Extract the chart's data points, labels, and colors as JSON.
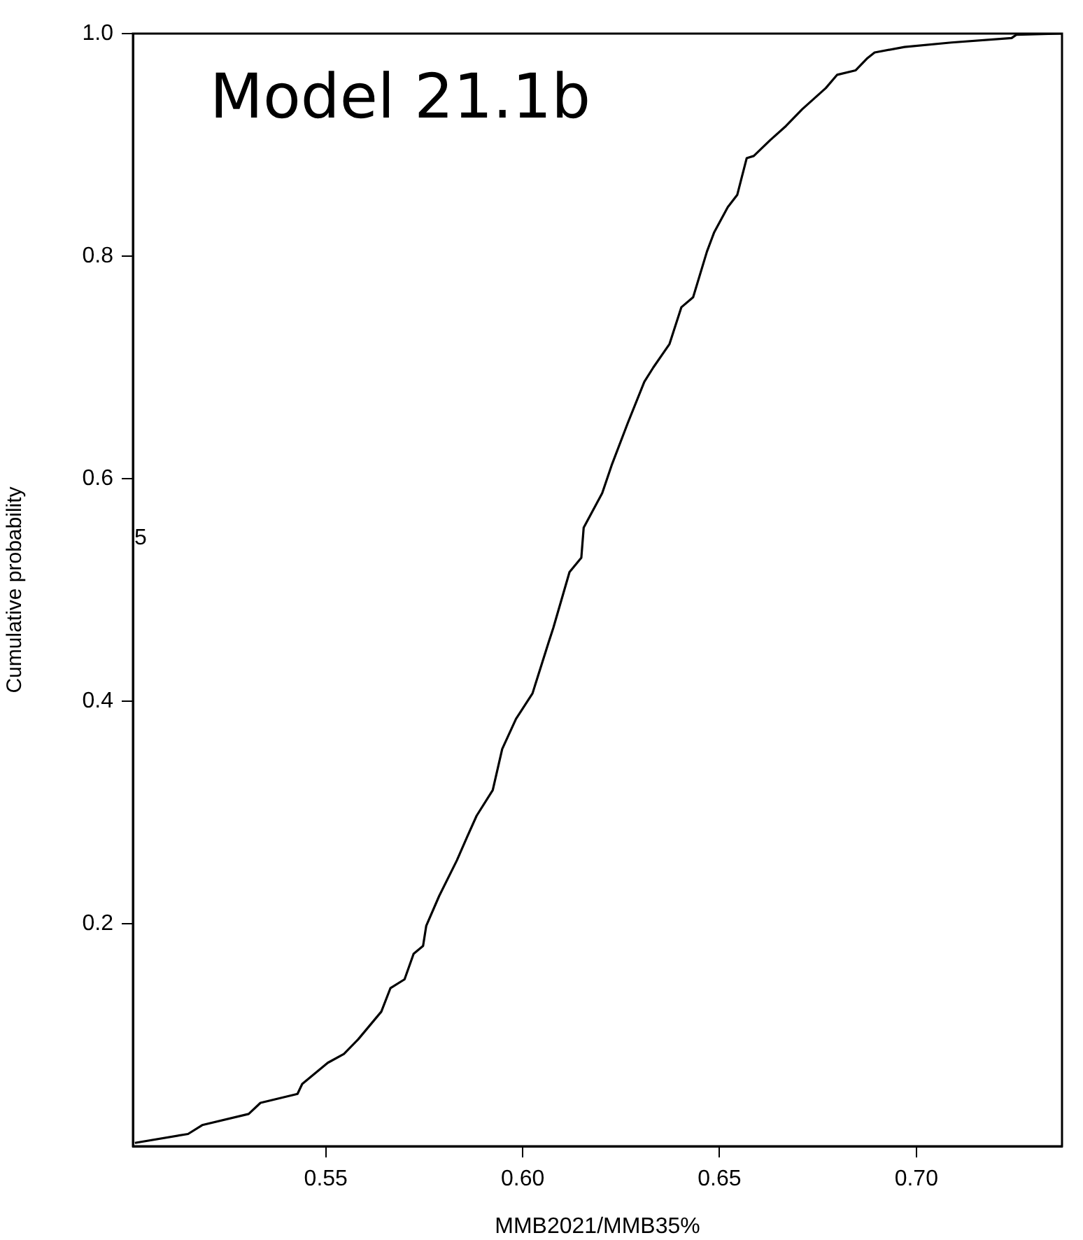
{
  "chart_data": {
    "type": "line",
    "title": "Model 21.1b",
    "xlabel": "MMB2021/MMB35%",
    "ylabel": "Cumulative probability",
    "annotations": [
      "5"
    ],
    "x": [
      0.5015,
      0.515,
      0.5186,
      0.5304,
      0.5334,
      0.5428,
      0.544,
      0.5505,
      0.5546,
      0.5582,
      0.5641,
      0.5664,
      0.57,
      0.5723,
      0.5747,
      0.5755,
      0.5788,
      0.5833,
      0.5859,
      0.5883,
      0.5924,
      0.5948,
      0.5983,
      0.6025,
      0.6066,
      0.6078,
      0.6119,
      0.6149,
      0.6155,
      0.6202,
      0.6226,
      0.6267,
      0.6309,
      0.6332,
      0.6373,
      0.6403,
      0.6433,
      0.6468,
      0.6486,
      0.6521,
      0.6545,
      0.6569,
      0.6587,
      0.6628,
      0.6669,
      0.671,
      0.677,
      0.6799,
      0.6846,
      0.6876,
      0.6894,
      0.697,
      0.7089,
      0.7242,
      0.7254,
      0.7368
    ],
    "series": [
      {
        "color": "#000000",
        "values": [
          0.003,
          0.011,
          0.019,
          0.029,
          0.039,
          0.047,
          0.056,
          0.075,
          0.083,
          0.096,
          0.121,
          0.142,
          0.15,
          0.173,
          0.18,
          0.198,
          0.225,
          0.257,
          0.278,
          0.297,
          0.32,
          0.357,
          0.384,
          0.407,
          0.453,
          0.466,
          0.516,
          0.529,
          0.556,
          0.587,
          0.612,
          0.65,
          0.687,
          0.7,
          0.721,
          0.754,
          0.763,
          0.804,
          0.821,
          0.844,
          0.855,
          0.888,
          0.89,
          0.904,
          0.917,
          0.932,
          0.951,
          0.963,
          0.967,
          0.978,
          0.983,
          0.988,
          0.992,
          0.996,
          0.999,
          1.0
        ]
      }
    ],
    "xlim": [
      0.501,
      0.737
    ],
    "ylim": [
      0,
      1
    ],
    "xticks": [
      0.55,
      {
        "value": 0.6,
        "label": "0.60"
      },
      0.65,
      {
        "value": 0.7,
        "label": "0.70"
      }
    ],
    "yticks": [
      0.2,
      0.4,
      0.6,
      0.8,
      {
        "value": 1,
        "label": "1.0"
      }
    ],
    "grid": false,
    "legend": false,
    "marker": "none",
    "line_style": "solid"
  }
}
